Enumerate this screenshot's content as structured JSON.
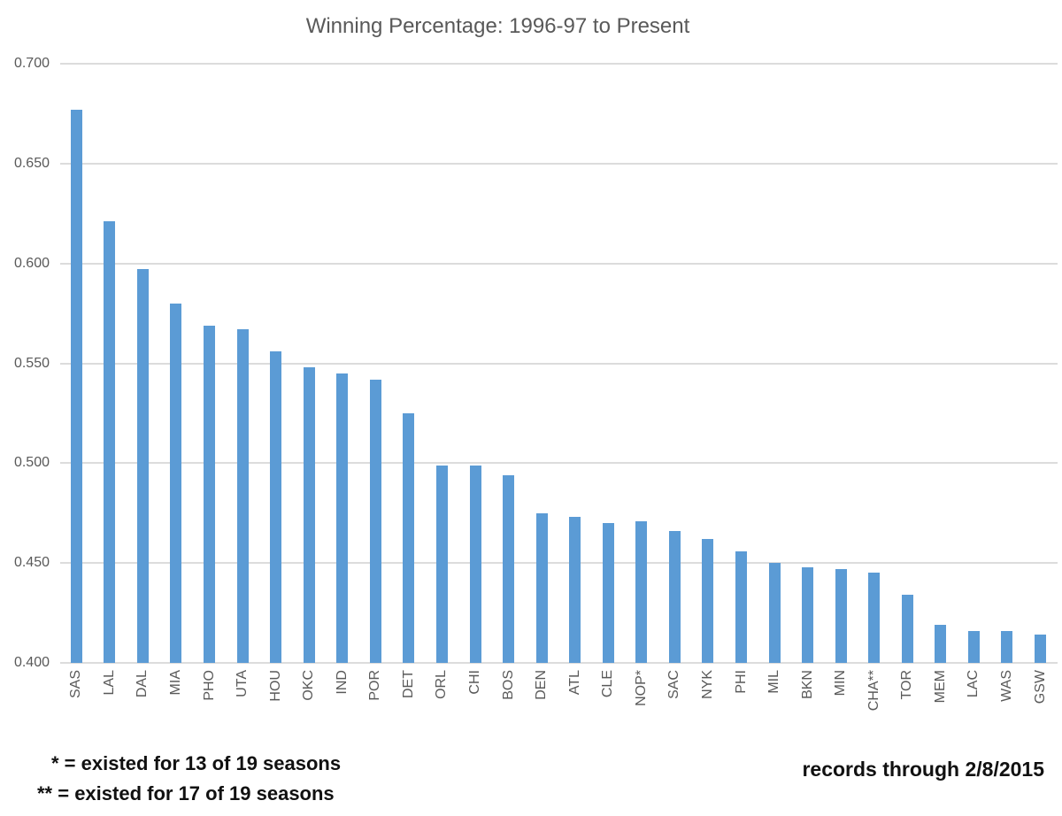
{
  "title": "Winning Percentage: 1996-97 to Present",
  "chart_data": {
    "type": "bar",
    "title": "Winning Percentage: 1996-97 to Present",
    "categories": [
      "SAS",
      "LAL",
      "DAL",
      "MIA",
      "PHO",
      "UTA",
      "HOU",
      "OKC",
      "IND",
      "POR",
      "DET",
      "ORL",
      "CHI",
      "BOS",
      "DEN",
      "ATL",
      "CLE",
      "NOP*",
      "SAC",
      "NYK",
      "PHI",
      "MIL",
      "BKN",
      "MIN",
      "CHA**",
      "TOR",
      "MEM",
      "LAC",
      "WAS",
      "GSW"
    ],
    "values": [
      0.677,
      0.621,
      0.597,
      0.58,
      0.569,
      0.567,
      0.556,
      0.548,
      0.545,
      0.542,
      0.525,
      0.499,
      0.499,
      0.494,
      0.475,
      0.473,
      0.47,
      0.471,
      0.466,
      0.462,
      0.456,
      0.45,
      0.448,
      0.447,
      0.445,
      0.434,
      0.419,
      0.416,
      0.416,
      0.414
    ],
    "xlabel": "",
    "ylabel": "",
    "ylim": [
      0.4,
      0.7
    ],
    "ytick_labels": [
      "0.700",
      "0.650",
      "0.600",
      "0.550",
      "0.500",
      "0.450",
      "0.400"
    ],
    "grid": true,
    "legend_position": "none",
    "bar_color": "#5B9BD5",
    "gridline_color": "#DCDCDC"
  },
  "footnotes": {
    "line1": "* = existed for 13 of 19 seasons",
    "line2": "** = existed for 17 of 19 seasons",
    "records_note": "records through 2/8/2015"
  }
}
